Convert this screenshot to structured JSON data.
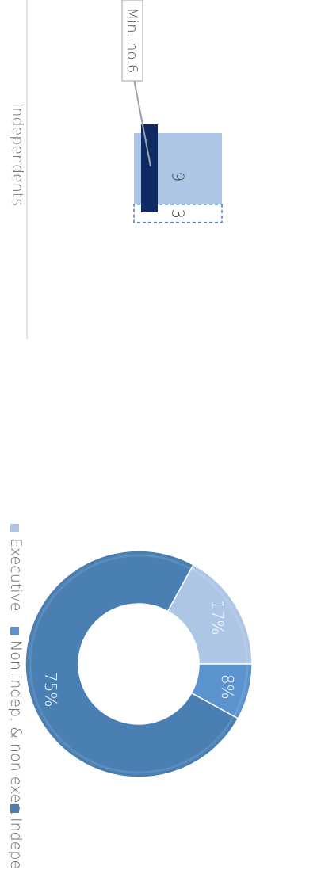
{
  "chart_data": [
    {
      "type": "pie",
      "variant": "donut",
      "categories": [
        "Executive",
        "Non indep. & non exec.",
        "Independent"
      ],
      "values": [
        17,
        8,
        75
      ],
      "value_labels": [
        "17%",
        "8%",
        "75%"
      ],
      "legend": {
        "placement": "bottom",
        "entries": [
          "Executive",
          "Non indep. & non exec.",
          "Independent"
        ]
      }
    },
    {
      "type": "bar",
      "stacked": true,
      "categories": [
        "Independents"
      ],
      "series": [
        {
          "values": [
            9
          ]
        },
        {
          "values": [
            3
          ]
        }
      ],
      "value_labels": [
        "9",
        "3"
      ],
      "threshold": {
        "label": "Min. no.6",
        "value": 6
      }
    }
  ],
  "colors": {
    "executive": "#aec6e6",
    "non_indep": "#5b93cf",
    "independent": "#4a7fb3",
    "bar_fill": "#adc6e6",
    "bar_outline": "#4f86c6",
    "marker": "#0f2a63",
    "axis": "#cfcfcf",
    "text": "#666666"
  }
}
